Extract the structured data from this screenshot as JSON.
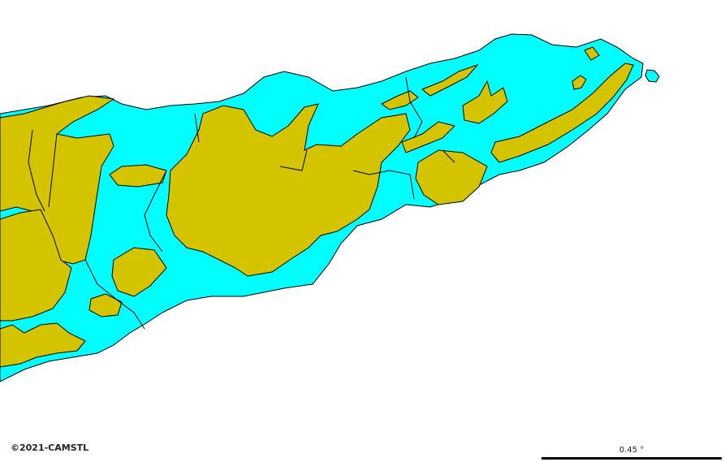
{
  "map": {
    "ocean_color": "#ffffff",
    "zone_a_color": "#00ffff",
    "zone_b_color": "#d4c400",
    "border_color": "#000000"
  },
  "attribution": {
    "text": "©2021-CAMSTL"
  },
  "scale": {
    "label": "0.45 °"
  }
}
